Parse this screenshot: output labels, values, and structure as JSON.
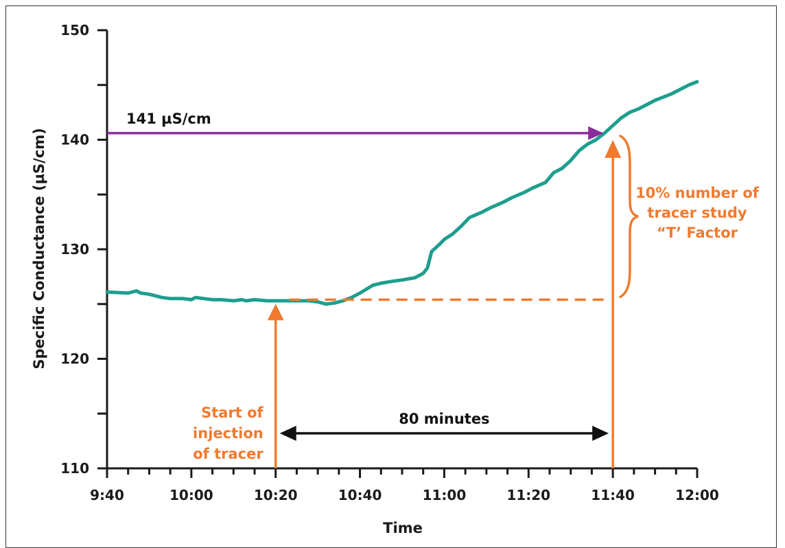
{
  "chart_data": {
    "type": "line",
    "xlabel": "Time",
    "ylabel": "Specific Conductance  (µS/cm)",
    "xlim": [
      "9:40",
      "12:00"
    ],
    "ylim": [
      110,
      150
    ],
    "x_ticks": [
      "9:40",
      "10:00",
      "10:20",
      "10:40",
      "11:00",
      "11:20",
      "11:40",
      "12:00"
    ],
    "y_ticks": [
      110,
      120,
      130,
      140,
      150
    ],
    "grid": false,
    "series": [
      {
        "color": "#1e9e8e",
        "x": [
          "9:40",
          "9:45",
          "9:47",
          "9:48",
          "9:50",
          "9:53",
          "9:55",
          "9:58",
          "10:00",
          "10:01",
          "10:03",
          "10:05",
          "10:07",
          "10:10",
          "10:12",
          "10:13",
          "10:15",
          "10:18",
          "10:20",
          "10:23",
          "10:25",
          "10:28",
          "10:30",
          "10:32",
          "10:34",
          "10:36",
          "10:38",
          "10:40",
          "10:43",
          "10:45",
          "10:48",
          "10:50",
          "10:53",
          "10:55",
          "10:56",
          "10:57",
          "10:59",
          "11:00",
          "11:02",
          "11:04",
          "11:06",
          "11:09",
          "11:11",
          "11:14",
          "11:16",
          "11:19",
          "11:21",
          "11:24",
          "11:26",
          "11:28",
          "11:30",
          "11:32",
          "11:34",
          "11:36",
          "11:38",
          "11:40",
          "11:42",
          "11:44",
          "11:46",
          "11:48",
          "11:50",
          "11:52",
          "11:54",
          "11:56",
          "11:58",
          "12:00"
        ],
        "values": [
          126.1,
          126.0,
          126.2,
          126.0,
          125.9,
          125.6,
          125.5,
          125.5,
          125.4,
          125.6,
          125.5,
          125.4,
          125.4,
          125.3,
          125.4,
          125.3,
          125.4,
          125.3,
          125.3,
          125.3,
          125.3,
          125.3,
          125.2,
          125.0,
          125.1,
          125.3,
          125.6,
          126.0,
          126.7,
          126.9,
          127.1,
          127.2,
          127.4,
          127.8,
          128.3,
          129.8,
          130.5,
          130.9,
          131.4,
          132.1,
          132.9,
          133.4,
          133.8,
          134.3,
          134.7,
          135.2,
          135.6,
          136.1,
          137.0,
          137.4,
          138.1,
          139.0,
          139.6,
          140.0,
          140.6,
          141.3,
          142.0,
          142.5,
          142.8,
          143.2,
          143.6,
          143.9,
          144.2,
          144.6,
          145.0,
          145.3
        ]
      }
    ],
    "annotations": {
      "level_label": "141 µS/cm",
      "level_value": 140.6,
      "baseline_value": 125.4,
      "injection_time": "10:20",
      "injection_label_lines": [
        "Start of",
        "injection",
        "of tracer"
      ],
      "t_factor_time": "11:40",
      "t_factor_label_lines": [
        "10% number of",
        "tracer study",
        "“T’ Factor"
      ],
      "duration_label": "80 minutes",
      "purple": "#8b2d9b",
      "orange": "#f07a2e",
      "black": "#111111"
    }
  }
}
